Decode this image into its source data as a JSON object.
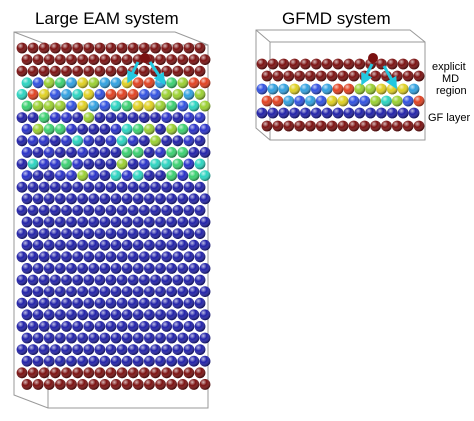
{
  "left_panel": {
    "title": "Large EAM system"
  },
  "right_panel": {
    "title": "GFMD system",
    "labels": {
      "explicit_md_region": [
        "explicit",
        "MD",
        "region"
      ],
      "gf_layer": "GF layer"
    }
  }
}
